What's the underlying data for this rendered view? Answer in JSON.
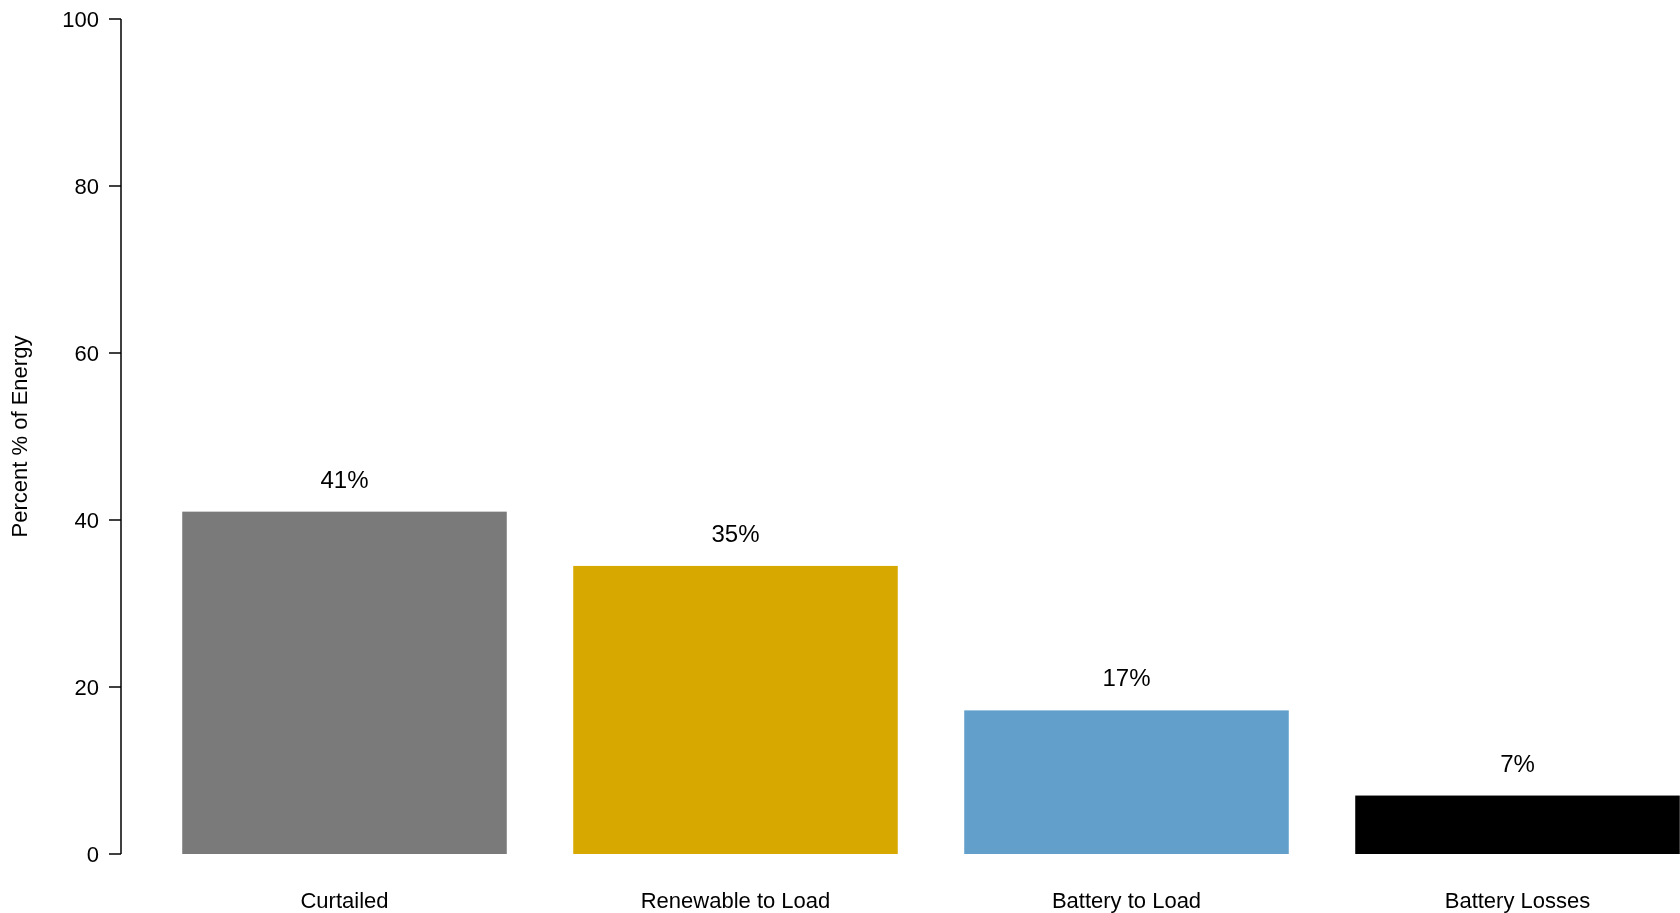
{
  "chart_data": {
    "type": "bar",
    "ylabel": "Percent % of Energy",
    "categories": [
      "Curtailed",
      "Renewable to Load",
      "Battery to Load",
      "Battery Losses"
    ],
    "values": [
      41,
      34.5,
      17.2,
      7
    ],
    "colors": [
      "#7a7a7a",
      "#d6a800",
      "#62a0cb",
      "#000000"
    ],
    "value_labels": [
      "41%",
      "35%",
      "17%",
      "7%"
    ],
    "ylim": [
      0,
      100
    ],
    "yticks": [
      0,
      20,
      40,
      60,
      80,
      100
    ],
    "grid": false
  }
}
